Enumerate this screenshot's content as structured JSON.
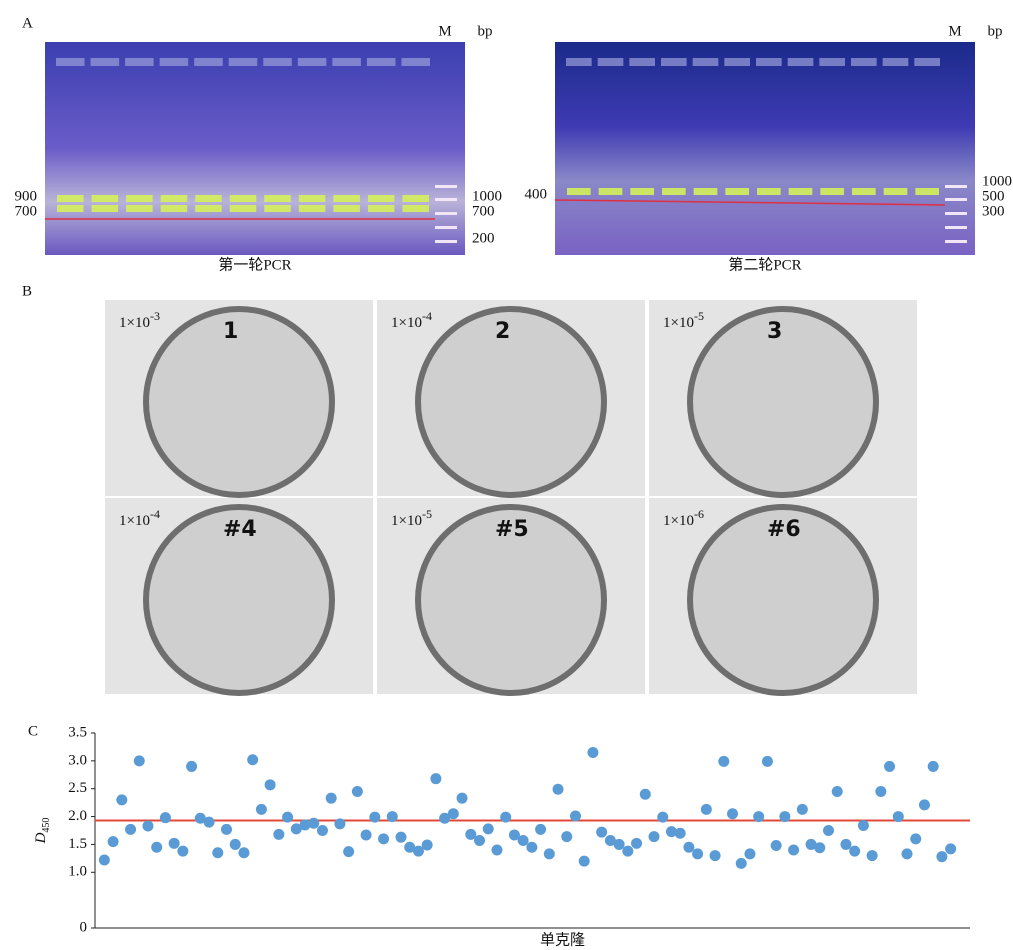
{
  "panels": {
    "a": {
      "label": "A",
      "gels": [
        {
          "marker": "M",
          "unit": "bp",
          "left_labels": [
            "900",
            "700"
          ],
          "right_labels": [
            "1000",
            "700",
            "200"
          ],
          "caption": "第一轮PCR"
        },
        {
          "marker": "M",
          "unit": "bp",
          "left_labels": [
            "400"
          ],
          "right_labels": [
            "1000",
            "500",
            "300"
          ],
          "caption": "第二轮PCR"
        }
      ]
    },
    "b": {
      "label": "B",
      "plates": [
        {
          "base": "1×10",
          "exponent": "-3",
          "mark": "1"
        },
        {
          "base": "1×10",
          "exponent": "-4",
          "mark": "2"
        },
        {
          "base": "1×10",
          "exponent": "-5",
          "mark": "3"
        },
        {
          "base": "1×10",
          "exponent": "-4",
          "mark": "#4"
        },
        {
          "base": "1×10",
          "exponent": "-5",
          "mark": "#5"
        },
        {
          "base": "1×10",
          "exponent": "-6",
          "mark": "#6"
        }
      ]
    },
    "c": {
      "label": "C"
    }
  },
  "chart_data": {
    "type": "scatter",
    "y_label": "D",
    "y_label_sub": "450",
    "x_label": "单克隆",
    "color": "#5b9bd5",
    "threshold": 1.93,
    "threshold_color": "#e0483a",
    "ylim": [
      0,
      3.5
    ],
    "yticks": [
      0,
      {
        "value": 1,
        "label": "1.0"
      },
      1.5,
      {
        "value": 2,
        "label": "2.0"
      },
      2.5,
      {
        "value": 3,
        "label": "3.0"
      },
      3.5
    ],
    "values": [
      1.22,
      1.55,
      2.3,
      1.77,
      3.0,
      1.83,
      1.45,
      1.98,
      1.52,
      1.38,
      2.9,
      1.97,
      1.9,
      1.35,
      1.77,
      1.5,
      1.35,
      3.02,
      2.13,
      2.57,
      1.68,
      1.99,
      1.78,
      1.85,
      1.88,
      1.75,
      2.33,
      1.87,
      1.37,
      2.45,
      1.67,
      1.99,
      1.6,
      2.0,
      1.63,
      1.45,
      1.38,
      1.49,
      2.68,
      1.97,
      2.05,
      2.33,
      1.68,
      1.57,
      1.78,
      1.4,
      1.99,
      1.67,
      1.57,
      1.45,
      1.77,
      1.33,
      2.49,
      1.64,
      2.01,
      1.2,
      3.15,
      1.72,
      1.57,
      1.5,
      1.38,
      1.52,
      2.4,
      1.64,
      1.99,
      1.73,
      1.7,
      1.45,
      1.33,
      2.13,
      1.3,
      2.99,
      2.05,
      1.16,
      1.33,
      2.0,
      2.99,
      1.48,
      2.0,
      1.4,
      2.13,
      1.5,
      1.44,
      1.75,
      2.45,
      1.5,
      1.38,
      1.84,
      1.3,
      2.45,
      2.9,
      2.0,
      1.33,
      1.6,
      2.21,
      2.9,
      1.28,
      1.42
    ]
  }
}
